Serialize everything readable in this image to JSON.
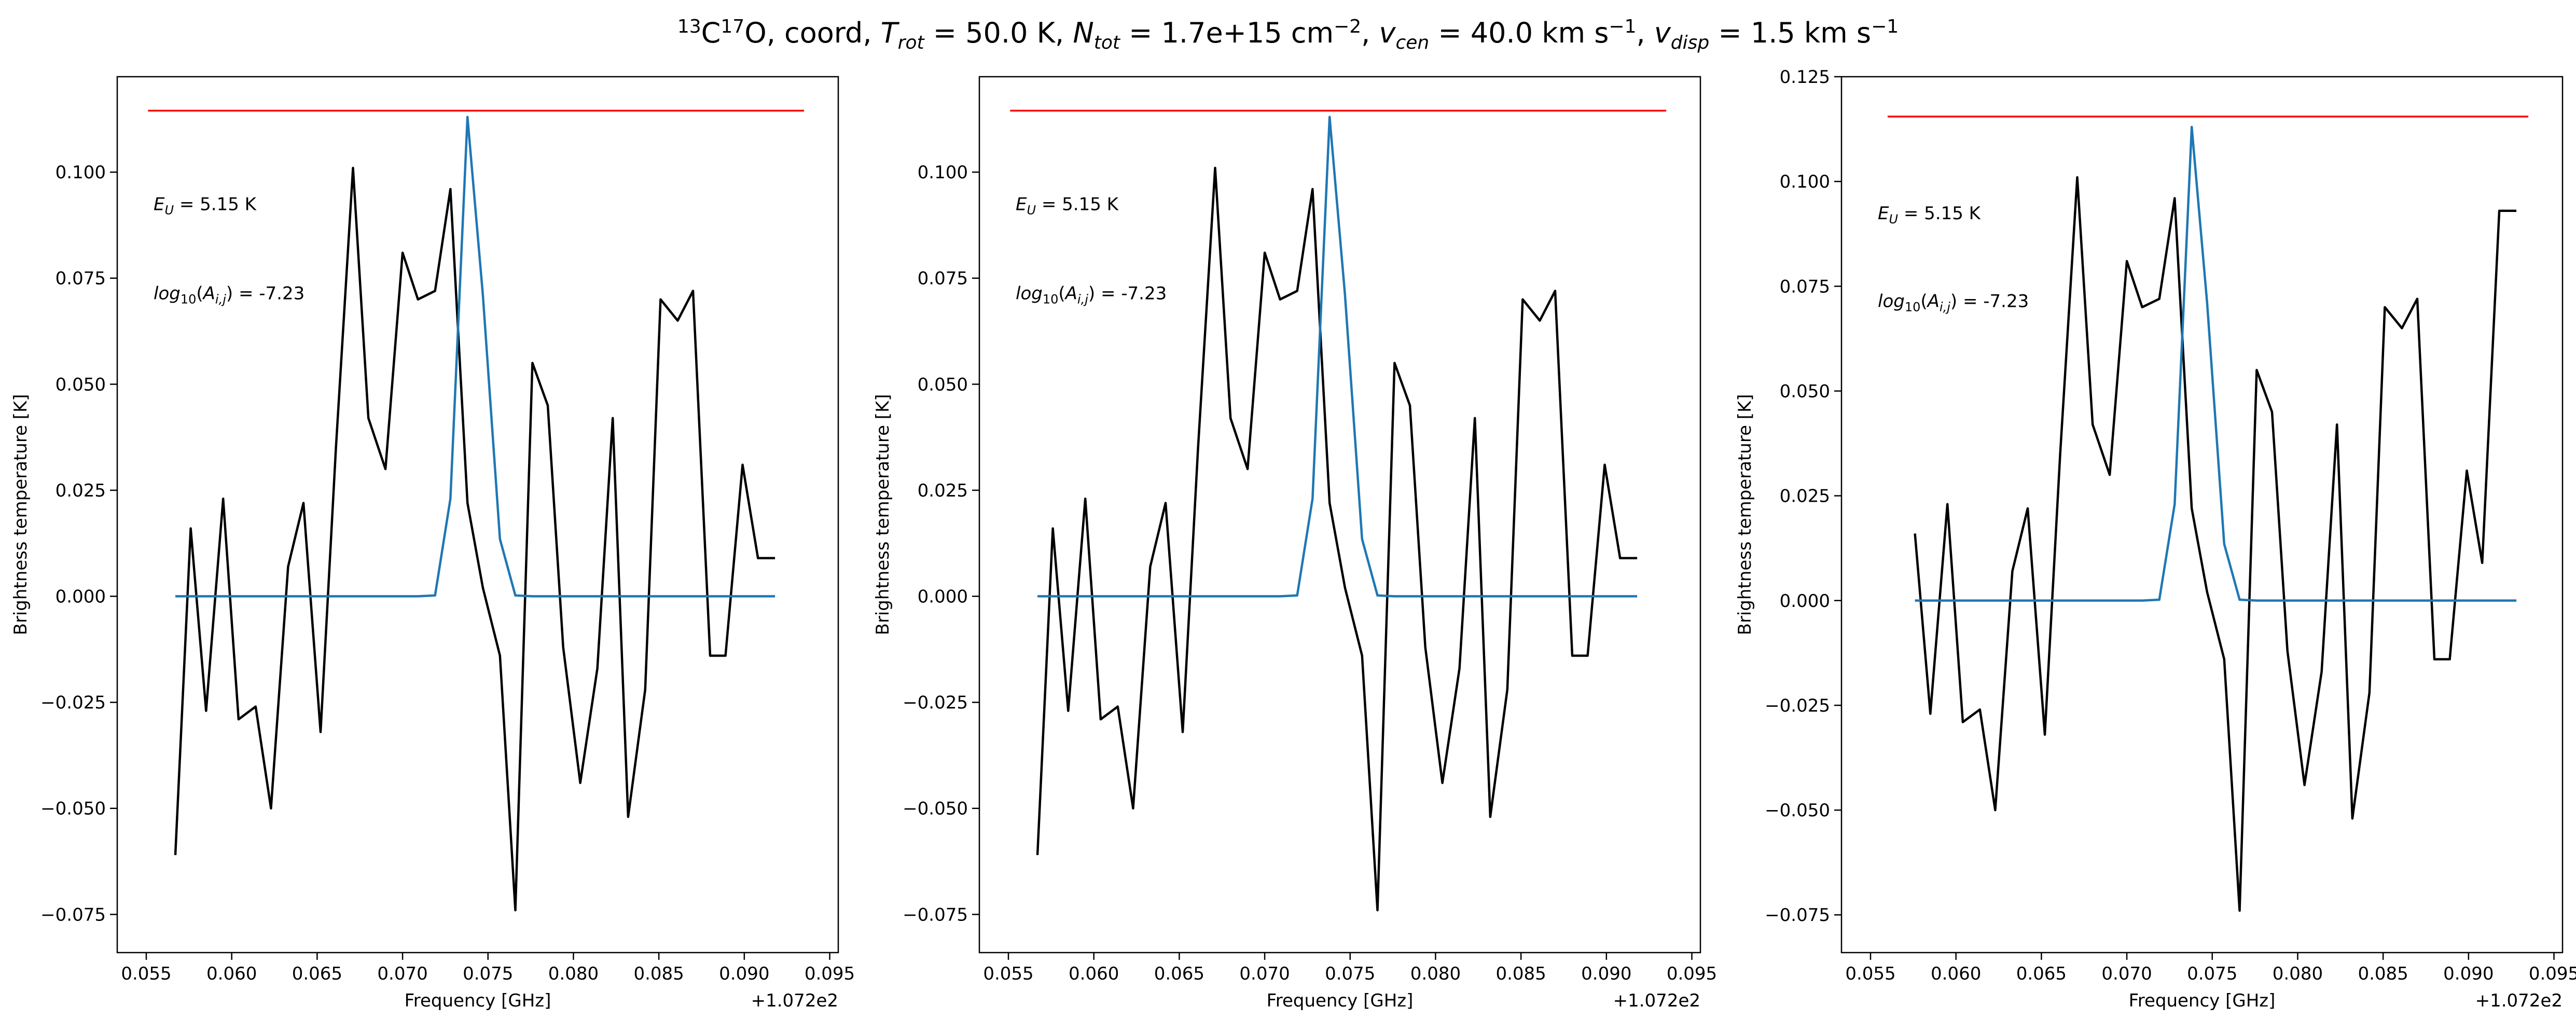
{
  "figure": {
    "title_parts": {
      "iso13": "13",
      "c": "C",
      "iso17": "17",
      "o_coord": "O, coord, ",
      "trot_sym": "T",
      "trot_sub": "rot",
      "trot_val": " =  50.0 K, ",
      "ntot_sym": "N",
      "ntot_sub": "tot",
      "ntot_val": " =  1.7e+15 cm",
      "ntot_exp": "−2",
      "sep1": ", ",
      "vcen_sym": "v",
      "vcen_sub": "cen",
      "vcen_val": " =  40.0 km s",
      "vcen_exp": "−1",
      "sep2": ", ",
      "vdisp_sym": "v",
      "vdisp_sub": "disp",
      "vdisp_val": " =  1.5 km s",
      "vdisp_exp": "−1"
    }
  },
  "colors": {
    "observed": "#000000",
    "model": "#1f77b4",
    "threshold": "#ff0000"
  },
  "chart_data": [
    {
      "type": "line",
      "xlabel": "Frequency [GHz]",
      "ylabel": "Brightness temperature [K]",
      "offset_label": "+1.072e2",
      "xlim": [
        0.0533,
        0.0955
      ],
      "ylim": [
        -0.084,
        0.1225
      ],
      "xticks": [
        0.055,
        0.06,
        0.065,
        0.07,
        0.075,
        0.08,
        0.085,
        0.09,
        0.095
      ],
      "xtick_labels": [
        "0.055",
        "0.060",
        "0.065",
        "0.070",
        "0.075",
        "0.080",
        "0.085",
        "0.090",
        "0.095"
      ],
      "yticks": [
        -0.075,
        -0.05,
        -0.025,
        0.0,
        0.025,
        0.05,
        0.075,
        0.1
      ],
      "ytick_labels": [
        "−0.075",
        "−0.050",
        "−0.025",
        "0.000",
        "0.025",
        "0.050",
        "0.075",
        "0.100"
      ],
      "grid": false,
      "annotations": {
        "eu": "E_U = 5.15 K",
        "aij": "log10(A_ij) = -7.23"
      },
      "threshold": {
        "y": 0.1145,
        "x": [
          0.0551,
          0.0935
        ]
      },
      "series": [
        {
          "x": [
            0.0567,
            0.0576,
            0.0585,
            0.0595,
            0.0604,
            0.0614,
            0.0623,
            0.0633,
            0.0642,
            0.0652,
            0.0661,
            0.0671,
            0.068,
            0.069,
            0.07,
            0.0709,
            0.0719,
            0.0728,
            0.0738,
            0.0747,
            0.0757,
            0.0766,
            0.0776,
            0.0785,
            0.0794,
            0.0804,
            0.0814,
            0.0823,
            0.0832,
            0.0842,
            0.0851,
            0.0861,
            0.087,
            0.088,
            0.0889,
            0.0899,
            0.0908,
            0.0918
          ],
          "values": [
            -0.061,
            0.016,
            -0.027,
            0.023,
            -0.029,
            -0.026,
            -0.05,
            0.007,
            0.022,
            -0.032,
            0.035,
            0.101,
            0.042,
            0.03,
            0.081,
            0.07,
            0.072,
            0.096,
            0.022,
            0.002,
            -0.014,
            -0.074,
            0.055,
            0.045,
            -0.012,
            -0.044,
            -0.017,
            0.042,
            -0.052,
            -0.022,
            0.07,
            0.065,
            0.072,
            -0.014,
            -0.014,
            0.031,
            0.009,
            0.009
          ]
        },
        {
          "x": [
            0.0567,
            0.0576,
            0.0585,
            0.0595,
            0.0604,
            0.0614,
            0.0623,
            0.0633,
            0.0642,
            0.0652,
            0.0661,
            0.0671,
            0.068,
            0.069,
            0.07,
            0.0709,
            0.0719,
            0.0728,
            0.0738,
            0.0747,
            0.0757,
            0.0766,
            0.0776,
            0.0785,
            0.0794,
            0.0804,
            0.0814,
            0.0823,
            0.0832,
            0.0842,
            0.0851,
            0.0861,
            0.087,
            0.088,
            0.0889,
            0.0899,
            0.0908,
            0.0918
          ],
          "values": [
            0,
            0,
            0,
            0,
            0,
            0,
            0,
            0,
            0,
            0,
            0,
            0,
            0,
            0,
            0,
            0,
            0.0002,
            0.023,
            0.113,
            0.071,
            0.0135,
            0.0002,
            0,
            0,
            0,
            0,
            0,
            0,
            0,
            0,
            0,
            0,
            0,
            0,
            0,
            0,
            0,
            0
          ]
        }
      ]
    },
    {
      "type": "line",
      "xlabel": "Frequency [GHz]",
      "ylabel": "Brightness temperature [K]",
      "offset_label": "+1.072e2",
      "xlim": [
        0.0533,
        0.0955
      ],
      "ylim": [
        -0.084,
        0.1225
      ],
      "xticks": [
        0.055,
        0.06,
        0.065,
        0.07,
        0.075,
        0.08,
        0.085,
        0.09,
        0.095
      ],
      "xtick_labels": [
        "0.055",
        "0.060",
        "0.065",
        "0.070",
        "0.075",
        "0.080",
        "0.085",
        "0.090",
        "0.095"
      ],
      "yticks": [
        -0.075,
        -0.05,
        -0.025,
        0.0,
        0.025,
        0.05,
        0.075,
        0.1
      ],
      "ytick_labels": [
        "−0.075",
        "−0.050",
        "−0.025",
        "0.000",
        "0.025",
        "0.050",
        "0.075",
        "0.100"
      ],
      "grid": false,
      "annotations": {
        "eu": "E_U = 5.15 K",
        "aij": "log10(A_ij) = -7.23"
      },
      "threshold": {
        "y": 0.1145,
        "x": [
          0.0551,
          0.0935
        ]
      },
      "series": [
        {
          "x": [
            0.0567,
            0.0576,
            0.0585,
            0.0595,
            0.0604,
            0.0614,
            0.0623,
            0.0633,
            0.0642,
            0.0652,
            0.0661,
            0.0671,
            0.068,
            0.069,
            0.07,
            0.0709,
            0.0719,
            0.0728,
            0.0738,
            0.0747,
            0.0757,
            0.0766,
            0.0776,
            0.0785,
            0.0794,
            0.0804,
            0.0814,
            0.0823,
            0.0832,
            0.0842,
            0.0851,
            0.0861,
            0.087,
            0.088,
            0.0889,
            0.0899,
            0.0908,
            0.0918
          ],
          "values": [
            -0.061,
            0.016,
            -0.027,
            0.023,
            -0.029,
            -0.026,
            -0.05,
            0.007,
            0.022,
            -0.032,
            0.035,
            0.101,
            0.042,
            0.03,
            0.081,
            0.07,
            0.072,
            0.096,
            0.022,
            0.002,
            -0.014,
            -0.074,
            0.055,
            0.045,
            -0.012,
            -0.044,
            -0.017,
            0.042,
            -0.052,
            -0.022,
            0.07,
            0.065,
            0.072,
            -0.014,
            -0.014,
            0.031,
            0.009,
            0.009
          ]
        },
        {
          "x": [
            0.0567,
            0.0576,
            0.0585,
            0.0595,
            0.0604,
            0.0614,
            0.0623,
            0.0633,
            0.0642,
            0.0652,
            0.0661,
            0.0671,
            0.068,
            0.069,
            0.07,
            0.0709,
            0.0719,
            0.0728,
            0.0738,
            0.0747,
            0.0757,
            0.0766,
            0.0776,
            0.0785,
            0.0794,
            0.0804,
            0.0814,
            0.0823,
            0.0832,
            0.0842,
            0.0851,
            0.0861,
            0.087,
            0.088,
            0.0889,
            0.0899,
            0.0908,
            0.0918
          ],
          "values": [
            0,
            0,
            0,
            0,
            0,
            0,
            0,
            0,
            0,
            0,
            0,
            0,
            0,
            0,
            0,
            0,
            0.0002,
            0.023,
            0.113,
            0.071,
            0.0135,
            0.0002,
            0,
            0,
            0,
            0,
            0,
            0,
            0,
            0,
            0,
            0,
            0,
            0,
            0,
            0,
            0,
            0
          ]
        }
      ]
    },
    {
      "type": "line",
      "xlabel": "Frequency [GHz]",
      "ylabel": "Brightness temperature [K]",
      "offset_label": "+1.072e2",
      "xlim": [
        0.0533,
        0.0955
      ],
      "ylim": [
        -0.084,
        0.125
      ],
      "xticks": [
        0.055,
        0.06,
        0.065,
        0.07,
        0.075,
        0.08,
        0.085,
        0.09,
        0.095
      ],
      "xtick_labels": [
        "0.055",
        "0.060",
        "0.065",
        "0.070",
        "0.075",
        "0.080",
        "0.085",
        "0.090",
        "0.095"
      ],
      "yticks": [
        -0.075,
        -0.05,
        -0.025,
        0.0,
        0.025,
        0.05,
        0.075,
        0.1,
        0.125
      ],
      "ytick_labels": [
        "−0.075",
        "−0.050",
        "−0.025",
        "0.000",
        "0.025",
        "0.050",
        "0.075",
        "0.100",
        "0.125"
      ],
      "grid": false,
      "annotations": {
        "eu": "E_U = 5.15 K",
        "aij": "log10(A_ij) = -7.23"
      },
      "threshold": {
        "y": 0.1155,
        "x": [
          0.056,
          0.0935
        ]
      },
      "series": [
        {
          "x": [
            0.0576,
            0.0585,
            0.0595,
            0.0604,
            0.0614,
            0.0623,
            0.0633,
            0.0642,
            0.0652,
            0.0661,
            0.0671,
            0.068,
            0.069,
            0.07,
            0.0709,
            0.0719,
            0.0728,
            0.0738,
            0.0747,
            0.0757,
            0.0766,
            0.0776,
            0.0785,
            0.0794,
            0.0804,
            0.0814,
            0.0823,
            0.0832,
            0.0842,
            0.0851,
            0.0861,
            0.087,
            0.088,
            0.0889,
            0.0899,
            0.0908,
            0.0918,
            0.0928
          ],
          "values": [
            0.016,
            -0.027,
            0.023,
            -0.029,
            -0.026,
            -0.05,
            0.007,
            0.022,
            -0.032,
            0.035,
            0.101,
            0.042,
            0.03,
            0.081,
            0.07,
            0.072,
            0.096,
            0.022,
            0.002,
            -0.014,
            -0.074,
            0.055,
            0.045,
            -0.012,
            -0.044,
            -0.017,
            0.042,
            -0.052,
            -0.022,
            0.07,
            0.065,
            0.072,
            -0.014,
            -0.014,
            0.031,
            0.009,
            0.093,
            0.093
          ]
        },
        {
          "x": [
            0.0576,
            0.0585,
            0.0595,
            0.0604,
            0.0614,
            0.0623,
            0.0633,
            0.0642,
            0.0652,
            0.0661,
            0.0671,
            0.068,
            0.069,
            0.07,
            0.0709,
            0.0719,
            0.0728,
            0.0738,
            0.0747,
            0.0757,
            0.0766,
            0.0776,
            0.0785,
            0.0794,
            0.0804,
            0.0814,
            0.0823,
            0.0832,
            0.0842,
            0.0851,
            0.0861,
            0.087,
            0.088,
            0.0889,
            0.0899,
            0.0908,
            0.0918,
            0.0928
          ],
          "values": [
            0,
            0,
            0,
            0,
            0,
            0,
            0,
            0,
            0,
            0,
            0,
            0,
            0,
            0,
            0,
            0.0002,
            0.023,
            0.113,
            0.071,
            0.0135,
            0.0002,
            0,
            0,
            0,
            0,
            0,
            0,
            0,
            0,
            0,
            0,
            0,
            0,
            0,
            0,
            0,
            0,
            0
          ]
        }
      ]
    }
  ]
}
